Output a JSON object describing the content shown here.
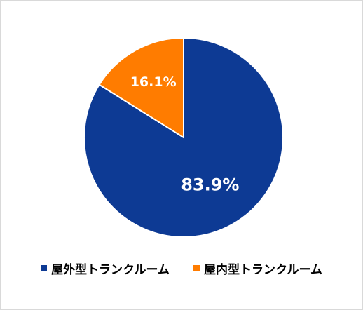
{
  "chart_data": {
    "type": "pie",
    "title": "",
    "categories": [
      "屋外型トランクルーム",
      "屋内型トランクルーム"
    ],
    "values": [
      83.9,
      16.1
    ],
    "data_labels": [
      "83.9%",
      "16.1%"
    ],
    "colors": [
      "#0d3a94",
      "#ff7c00"
    ],
    "legend_position": "bottom"
  }
}
